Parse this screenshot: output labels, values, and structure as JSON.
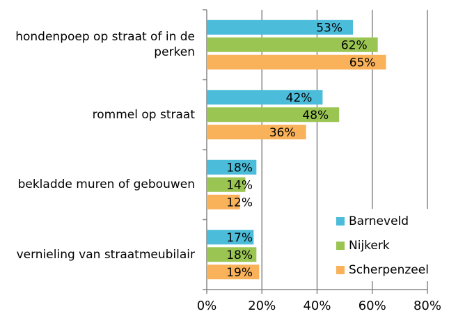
{
  "chart_data": {
    "type": "bar",
    "orientation": "horizontal",
    "categories": [
      "hondenpoep op  straat of in de perken",
      "rommel op straat",
      "bekladde muren of gebouwen",
      "vernieling van straatmeubilair"
    ],
    "series": [
      {
        "name": "Barneveld",
        "color": "#4bbcd9",
        "values": [
          53,
          42,
          18,
          17
        ],
        "value_labels": [
          "53%",
          "42%",
          "18%",
          "17%"
        ]
      },
      {
        "name": "Nijkerk",
        "color": "#9bc553",
        "values": [
          62,
          48,
          14,
          18
        ],
        "value_labels": [
          "62%",
          "48%",
          "14%",
          "18%"
        ]
      },
      {
        "name": "Scherpenzeel",
        "color": "#f9b25a",
        "values": [
          65,
          36,
          12,
          19
        ],
        "value_labels": [
          "65%",
          "36%",
          "12%",
          "19%"
        ]
      }
    ],
    "xlim": [
      0,
      80
    ],
    "xticks": [
      {
        "value": 0,
        "label": "0%"
      },
      {
        "value": 20,
        "label": "20%"
      },
      {
        "value": 40,
        "label": "40%"
      },
      {
        "value": 60,
        "label": "60%"
      },
      {
        "value": 80,
        "label": "80%"
      }
    ],
    "grid": true,
    "legend": "lower right"
  }
}
